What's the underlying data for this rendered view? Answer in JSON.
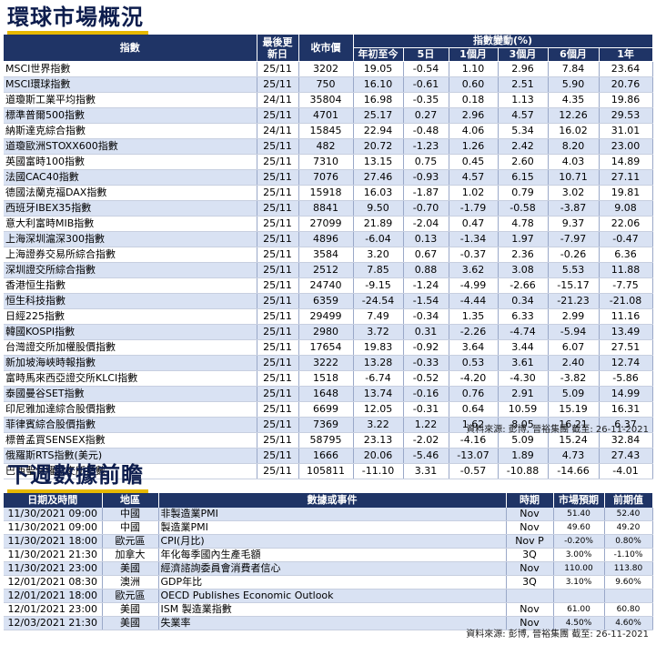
{
  "market": {
    "title": "環球市場概況",
    "headers": {
      "index": "指數",
      "last_update": "最後更新日",
      "close": "收市價",
      "change_group": "指數變動(%)",
      "ytd": "年初至今",
      "d5": "5日",
      "m1": "1個月",
      "m3": "3個月",
      "m6": "6個月",
      "y1": "1年"
    },
    "rows": [
      [
        "MSCI世界指數",
        "25/11",
        "3202",
        "19.05",
        "-0.54",
        "1.10",
        "2.96",
        "7.84",
        "23.64"
      ],
      [
        "MSCI環球指數",
        "25/11",
        "750",
        "16.10",
        "-0.61",
        "0.60",
        "2.51",
        "5.90",
        "20.76"
      ],
      [
        "道瓊斯工業平均指數",
        "24/11",
        "35804",
        "16.98",
        "-0.35",
        "0.18",
        "1.13",
        "4.35",
        "19.86"
      ],
      [
        "標準普爾500指數",
        "25/11",
        "4701",
        "25.17",
        "0.27",
        "2.96",
        "4.57",
        "12.26",
        "29.53"
      ],
      [
        "納斯達克綜合指數",
        "24/11",
        "15845",
        "22.94",
        "-0.48",
        "4.06",
        "5.34",
        "16.02",
        "31.01"
      ],
      [
        "道瓊歐洲STOXX600指數",
        "25/11",
        "482",
        "20.72",
        "-1.23",
        "1.26",
        "2.42",
        "8.20",
        "23.00"
      ],
      [
        "英國富時100指數",
        "25/11",
        "7310",
        "13.15",
        "0.75",
        "0.45",
        "2.60",
        "4.03",
        "14.89"
      ],
      [
        "法國CAC40指數",
        "25/11",
        "7076",
        "27.46",
        "-0.93",
        "4.57",
        "6.15",
        "10.71",
        "27.11"
      ],
      [
        "德國法蘭克福DAX指數",
        "25/11",
        "15918",
        "16.03",
        "-1.87",
        "1.02",
        "0.79",
        "3.02",
        "19.81"
      ],
      [
        "西班牙IBEX35指數",
        "25/11",
        "8841",
        "9.50",
        "-0.70",
        "-1.79",
        "-0.58",
        "-3.87",
        "9.08"
      ],
      [
        "意大利富時MIB指數",
        "25/11",
        "27099",
        "21.89",
        "-2.04",
        "0.47",
        "4.78",
        "9.37",
        "22.06"
      ],
      [
        "上海深圳滬深300指數",
        "25/11",
        "4896",
        "-6.04",
        "0.13",
        "-1.34",
        "1.97",
        "-7.97",
        "-0.47"
      ],
      [
        "上海證券交易所綜合指數",
        "25/11",
        "3584",
        "3.20",
        "0.67",
        "-0.37",
        "2.36",
        "-0.26",
        "6.36"
      ],
      [
        "深圳證交所綜合指數",
        "25/11",
        "2512",
        "7.85",
        "0.88",
        "3.62",
        "3.08",
        "5.53",
        "11.88"
      ],
      [
        "香港恒生指數",
        "25/11",
        "24740",
        "-9.15",
        "-1.24",
        "-4.99",
        "-2.66",
        "-15.17",
        "-7.75"
      ],
      [
        "恒生科技指數",
        "25/11",
        "6359",
        "-24.54",
        "-1.54",
        "-4.44",
        "0.34",
        "-21.23",
        "-21.08"
      ],
      [
        "日經225指數",
        "25/11",
        "29499",
        "7.49",
        "-0.34",
        "1.35",
        "6.33",
        "2.99",
        "11.16"
      ],
      [
        "韓國KOSPI指數",
        "25/11",
        "2980",
        "3.72",
        "0.31",
        "-2.26",
        "-4.74",
        "-5.94",
        "13.49"
      ],
      [
        "台灣證交所加權股價指數",
        "25/11",
        "17654",
        "19.83",
        "-0.92",
        "3.64",
        "3.44",
        "6.07",
        "27.51"
      ],
      [
        "新加坡海峽時報指數",
        "25/11",
        "3222",
        "13.28",
        "-0.33",
        "0.53",
        "3.61",
        "2.40",
        "12.74"
      ],
      [
        "富時馬來西亞證交所KLCI指數",
        "25/11",
        "1518",
        "-6.74",
        "-0.52",
        "-4.20",
        "-4.30",
        "-3.82",
        "-5.86"
      ],
      [
        "泰國曼谷SET指數",
        "25/11",
        "1648",
        "13.74",
        "-0.16",
        "0.76",
        "2.91",
        "5.09",
        "14.99"
      ],
      [
        "印尼雅加達綜合股價指數",
        "25/11",
        "6699",
        "12.05",
        "-0.31",
        "0.64",
        "10.59",
        "15.19",
        "16.31"
      ],
      [
        "菲律賓綜合股價指數",
        "25/11",
        "7369",
        "3.22",
        "1.22",
        "1.62",
        "8.05",
        "16.21",
        "6.37"
      ],
      [
        "標普孟買SENSEX指數",
        "25/11",
        "58795",
        "23.13",
        "-2.02",
        "-4.16",
        "5.09",
        "15.24",
        "32.84"
      ],
      [
        "俄羅斯RTS指數(美元)",
        "25/11",
        "1666",
        "20.06",
        "-5.46",
        "-13.07",
        "1.89",
        "4.73",
        "27.43"
      ],
      [
        "巴西聖保羅證交所指數",
        "25/11",
        "105811",
        "-11.10",
        "3.31",
        "-0.57",
        "-10.88",
        "-14.66",
        "-4.01"
      ]
    ],
    "source": "資料來源: 彭博, 晉裕集團 截至: 26-11-2021"
  },
  "events": {
    "title": "下週數據前瞻",
    "headers": {
      "datetime": "日期及時間",
      "region": "地區",
      "event": "數據或事件",
      "period": "時期",
      "forecast": "市場預期",
      "previous": "前期值"
    },
    "rows": [
      [
        "11/30/2021 09:00",
        "中國",
        "非製造業PMI",
        "Nov",
        "51.40",
        "52.40"
      ],
      [
        "11/30/2021 09:00",
        "中國",
        "製造業PMI",
        "Nov",
        "49.60",
        "49.20"
      ],
      [
        "11/30/2021 18:00",
        "歐元區",
        "CPI(月比)",
        "Nov P",
        "-0.20%",
        "0.80%"
      ],
      [
        "11/30/2021 21:30",
        "加拿大",
        "年化每季國內生產毛額",
        "3Q",
        "3.00%",
        "-1.10%"
      ],
      [
        "11/30/2021 23:00",
        "美國",
        "經濟諮詢委員會消費者信心",
        "Nov",
        "110.00",
        "113.80"
      ],
      [
        "12/01/2021 08:30",
        "澳洲",
        "GDP年比",
        "3Q",
        "3.10%",
        "9.60%"
      ],
      [
        "12/01/2021 18:00",
        "歐元區",
        "OECD Publishes Economic Outlook",
        "",
        "",
        ""
      ],
      [
        "12/01/2021 23:00",
        "美國",
        "ISM 製造業指數",
        "Nov",
        "61.00",
        "60.80"
      ],
      [
        "12/03/2021 21:30",
        "美國",
        "失業率",
        "Nov",
        "4.50%",
        "4.60%"
      ]
    ],
    "source": "資料來源: 彭博, 晉裕集團 截至: 26-11-2021"
  }
}
